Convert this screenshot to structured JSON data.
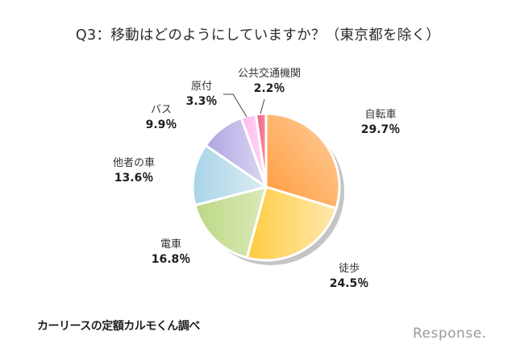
{
  "title": "Q3：移動はどのようにしていますか？（東京都を除く）",
  "source": "カーリースの定額カルモくん調べ",
  "brand": "Response.",
  "chart_data": {
    "type": "pie",
    "title": "Q3：移動はどのようにしていますか？（東京都を除く）",
    "start_angle_deg": 0,
    "direction": "clockwise",
    "unit": "%",
    "slices": [
      {
        "label": "自転車",
        "value": 29.7,
        "display": "29.7％",
        "color": "#ffb060"
      },
      {
        "label": "徒歩",
        "value": 24.5,
        "display": "24.5％",
        "color": "#ffd860"
      },
      {
        "label": "電車",
        "value": 16.8,
        "display": "16.8％",
        "color": "#c8df98"
      },
      {
        "label": "他者の車",
        "value": 13.6,
        "display": "13.6％",
        "color": "#b4dbe8"
      },
      {
        "label": "バス",
        "value": 9.9,
        "display": "9.9％",
        "color": "#c4bceb"
      },
      {
        "label": "原付",
        "value": 3.3,
        "display": "3.3％",
        "color": "#ffc6f2"
      },
      {
        "label": "公共交通機関",
        "value": 2.2,
        "display": "2.2％",
        "color": "#f5708e"
      }
    ],
    "legend": "none (direct labels)",
    "source_note": "カーリースの定額カルモくん調べ"
  },
  "labels": {
    "bicycle": {
      "name": "自転車",
      "val": "29.7％"
    },
    "walk": {
      "name": "徒歩",
      "val": "24.5％"
    },
    "train": {
      "name": "電車",
      "val": "16.8％"
    },
    "othercar": {
      "name": "他者の車",
      "val": "13.6％"
    },
    "bus": {
      "name": "バス",
      "val": "9.9％"
    },
    "moped": {
      "name": "原付",
      "val": "3.3％"
    },
    "public": {
      "name": "公共交通機関",
      "val": "2.2％"
    }
  }
}
